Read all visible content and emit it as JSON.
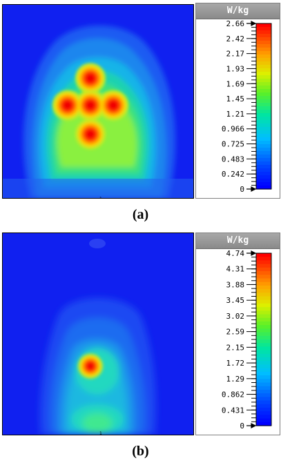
{
  "chart_data": [
    {
      "type": "heatmap",
      "caption": "(a)",
      "unit_label": "W/kg",
      "colorbar_ticks": [
        "2.66",
        "2.42",
        "2.17",
        "1.93",
        "1.69",
        "1.45",
        "1.21",
        "0.966",
        "0.725",
        "0.483",
        "0.242",
        "0"
      ],
      "vmin": 0,
      "vmax": 2.66,
      "hotspots": [
        {
          "x": 0.46,
          "y": 0.38,
          "value": 2.66
        },
        {
          "x": 0.34,
          "y": 0.52,
          "value": 2.66
        },
        {
          "x": 0.58,
          "y": 0.52,
          "value": 2.66
        },
        {
          "x": 0.46,
          "y": 0.52,
          "value": 2.66
        },
        {
          "x": 0.46,
          "y": 0.67,
          "value": 2.66
        }
      ]
    },
    {
      "type": "heatmap",
      "caption": "(b)",
      "unit_label": "W/kg",
      "colorbar_ticks": [
        "4.74",
        "4.31",
        "3.88",
        "3.45",
        "3.02",
        "2.59",
        "2.15",
        "1.72",
        "1.29",
        "0.862",
        "0.431",
        "0"
      ],
      "vmin": 0,
      "vmax": 4.74,
      "hotspots": [
        {
          "x": 0.46,
          "y": 0.66,
          "value": 4.74
        }
      ]
    }
  ],
  "colors": {
    "low": "#0000ff",
    "mid": "#00ff00",
    "high": "#ff0000"
  }
}
